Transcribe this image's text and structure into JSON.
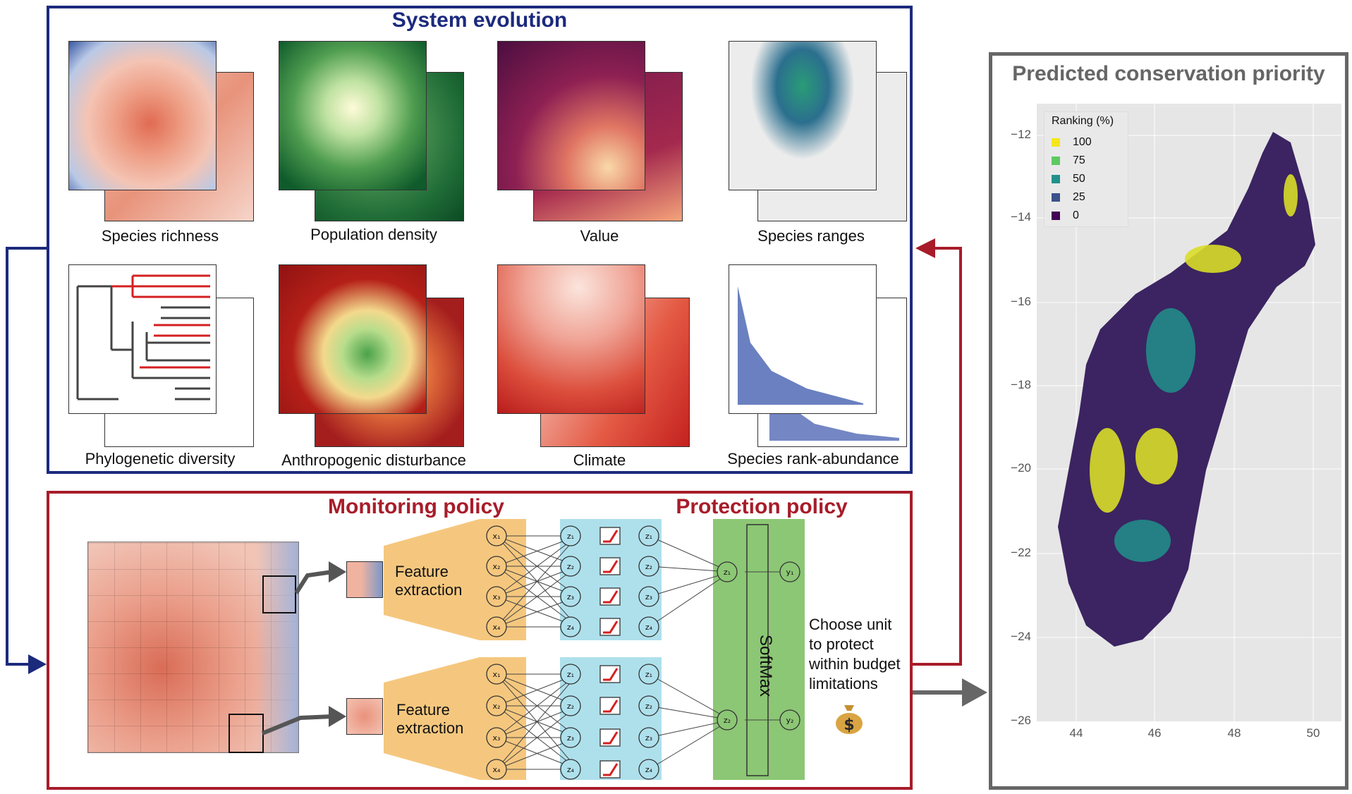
{
  "system_evolution": {
    "title": "System evolution",
    "panels": [
      {
        "id": "species-richness",
        "label": "Species richness"
      },
      {
        "id": "population-density",
        "label": "Population density"
      },
      {
        "id": "value",
        "label": "Value"
      },
      {
        "id": "species-ranges",
        "label": "Species ranges"
      },
      {
        "id": "phylogenetic-diversity",
        "label": "Phylogenetic diversity"
      },
      {
        "id": "anthropogenic-disturbance",
        "label": "Anthropogenic disturbance"
      },
      {
        "id": "climate",
        "label": "Climate"
      },
      {
        "id": "species-rank-abundance",
        "label": "Species rank-abundance"
      }
    ]
  },
  "policy": {
    "monitoring_title": "Monitoring policy",
    "protection_title": "Protection policy",
    "feature_extraction": "Feature extraction",
    "softmax": "SoftMax",
    "choose_text": "Choose unit to protect within budget limitations",
    "money_icon": "money-bag-icon",
    "inputs": [
      "x1",
      "x2",
      "x3",
      "x4"
    ],
    "outputs": [
      "y1",
      "y2"
    ]
  },
  "map": {
    "title": "Predicted conservation priority",
    "legend_title": "Ranking (%)",
    "legend": [
      {
        "label": "100",
        "color": "#f5e61b"
      },
      {
        "label": "75",
        "color": "#5ec962"
      },
      {
        "label": "50",
        "color": "#21918c"
      },
      {
        "label": "25",
        "color": "#3b528b"
      },
      {
        "label": "0",
        "color": "#440154"
      }
    ],
    "y_ticks": [
      "−12",
      "−14",
      "−16",
      "−18",
      "−20",
      "−22",
      "−24",
      "−26"
    ],
    "x_ticks": [
      "44",
      "46",
      "48",
      "50"
    ]
  },
  "colors": {
    "blue_frame": "#1c2a7d",
    "red_frame": "#a81c2a",
    "grey_frame": "#555555",
    "orange": "#f5c77e",
    "light_blue": "#aee0ec",
    "green": "#8cc775"
  }
}
